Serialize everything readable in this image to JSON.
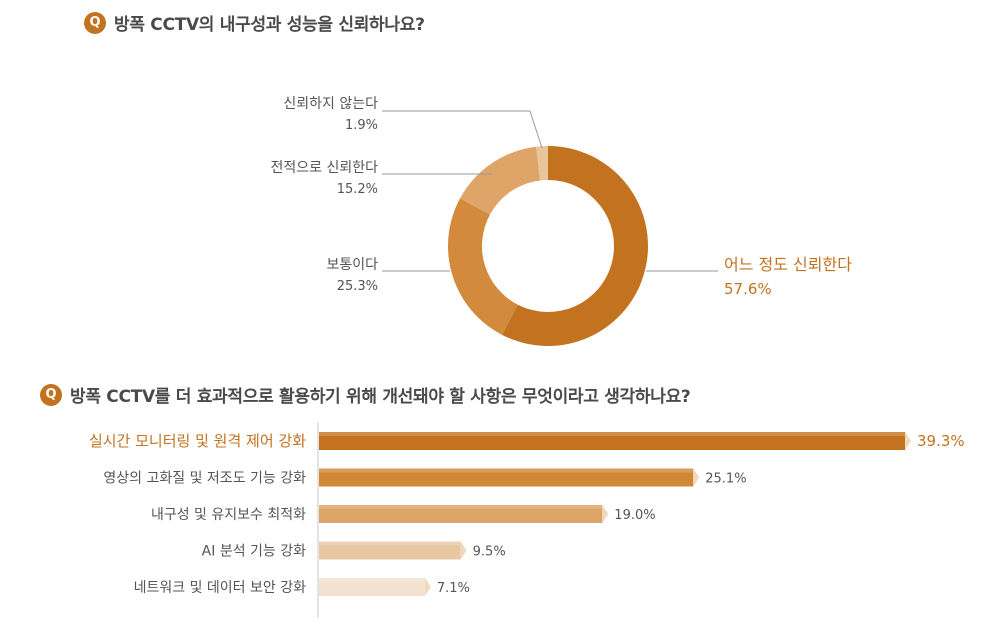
{
  "badge": "Q",
  "chart_data": [
    {
      "type": "pie",
      "title": "방폭 CCTV의 내구성과 성능을 신뢰하나요?",
      "categories": [
        "어느 정도 신뢰한다",
        "보통이다",
        "전적으로 신뢰한다",
        "신뢰하지 않는다"
      ],
      "values": [
        57.6,
        25.3,
        15.2,
        1.9
      ],
      "value_labels": [
        "57.6%",
        "25.3%",
        "15.2%",
        "1.9%"
      ],
      "colors": [
        "#c3731f",
        "#d48a3c",
        "#dfa468",
        "#eac49b"
      ],
      "donut": true
    },
    {
      "type": "bar",
      "orientation": "horizontal",
      "title": "방폭 CCTV를 더 효과적으로 활용하기 위해 개선돼야 할 사항은 무엇이라고 생각하나요?",
      "categories": [
        "실시간 모니터링 및 원격 제어 강화",
        "영상의 고화질 및 저조도 기능 강화",
        "내구성 및 유지보수 최적화",
        "AI 분석 기능 강화",
        "네트워크 및 데이터 보안 강화"
      ],
      "values": [
        39.3,
        25.1,
        19.0,
        9.5,
        7.1
      ],
      "value_labels": [
        "39.3%",
        "25.1%",
        "19.0%",
        "9.5%",
        "7.1%"
      ],
      "colors": [
        "#c3731f",
        "#d18836",
        "#dca466",
        "#e8c7a3",
        "#f3e2cf"
      ],
      "xlim": [
        0,
        39.3
      ]
    }
  ]
}
